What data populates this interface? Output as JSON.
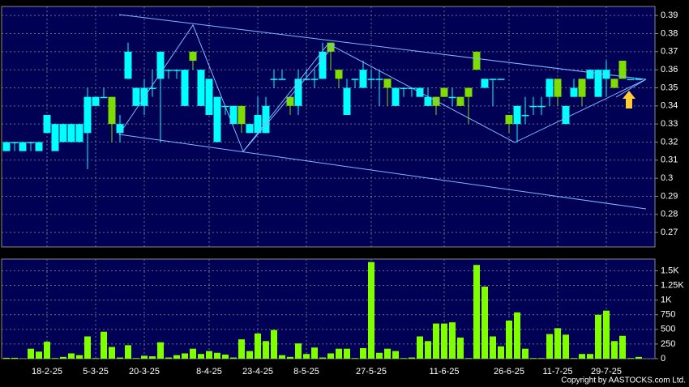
{
  "chart_data": [
    {
      "type": "candlestick",
      "open": [
        0.32,
        0.32,
        0.32,
        0.32,
        0.32,
        0.335,
        0.33,
        0.33,
        0.33,
        0.33,
        0.345,
        0.345,
        0.345,
        0.33,
        0.33,
        0.37,
        0.35,
        0.35,
        0.35,
        0.37,
        0.36,
        0.36,
        0.36,
        0.365,
        0.36,
        0.355,
        0.345,
        0.34,
        0.34,
        0.33,
        0.33,
        0.335,
        0.34,
        0.355,
        0.355,
        0.34,
        0.355,
        0.355,
        0.355,
        0.37,
        0.37,
        0.355,
        0.35,
        0.355,
        0.36,
        0.355,
        0.355,
        0.35,
        0.35,
        0.35,
        0.35,
        0.35,
        0.345,
        0.34,
        0.345,
        0.345,
        0.34,
        0.345,
        0.36,
        0.355,
        0.355,
        0.355,
        0.33,
        0.34,
        0.335,
        0.34,
        0.34,
        0.355,
        0.345,
        0.34,
        0.35,
        0.345,
        0.36,
        0.36,
        0.36,
        0.35,
        0.355,
        0.355,
        0.355
      ],
      "high": [
        0.32,
        0.32,
        0.32,
        0.32,
        0.32,
        0.335,
        0.33,
        0.33,
        0.33,
        0.33,
        0.35,
        0.345,
        0.35,
        0.345,
        0.335,
        0.375,
        0.35,
        0.355,
        0.36,
        0.37,
        0.36,
        0.36,
        0.36,
        0.37,
        0.36,
        0.355,
        0.345,
        0.34,
        0.34,
        0.34,
        0.33,
        0.345,
        0.345,
        0.36,
        0.36,
        0.345,
        0.36,
        0.36,
        0.36,
        0.375,
        0.375,
        0.36,
        0.355,
        0.355,
        0.365,
        0.36,
        0.36,
        0.355,
        0.35,
        0.35,
        0.35,
        0.35,
        0.35,
        0.345,
        0.35,
        0.35,
        0.345,
        0.35,
        0.37,
        0.355,
        0.355,
        0.355,
        0.335,
        0.34,
        0.345,
        0.345,
        0.345,
        0.355,
        0.355,
        0.34,
        0.355,
        0.355,
        0.36,
        0.36,
        0.365,
        0.355,
        0.365,
        0.355,
        0.355
      ],
      "low": [
        0.315,
        0.315,
        0.315,
        0.315,
        0.315,
        0.325,
        0.315,
        0.32,
        0.32,
        0.32,
        0.305,
        0.34,
        0.345,
        0.32,
        0.32,
        0.355,
        0.34,
        0.335,
        0.345,
        0.32,
        0.355,
        0.355,
        0.34,
        0.36,
        0.34,
        0.335,
        0.32,
        0.335,
        0.33,
        0.325,
        0.325,
        0.325,
        0.325,
        0.35,
        0.355,
        0.335,
        0.335,
        0.355,
        0.35,
        0.355,
        0.36,
        0.35,
        0.335,
        0.35,
        0.35,
        0.35,
        0.34,
        0.34,
        0.34,
        0.345,
        0.345,
        0.345,
        0.34,
        0.335,
        0.345,
        0.34,
        0.34,
        0.33,
        0.36,
        0.35,
        0.34,
        0.355,
        0.325,
        0.32,
        0.33,
        0.335,
        0.335,
        0.34,
        0.34,
        0.33,
        0.345,
        0.34,
        0.355,
        0.345,
        0.345,
        0.35,
        0.355,
        0.355,
        0.355
      ],
      "close": [
        0.315,
        0.32,
        0.315,
        0.32,
        0.315,
        0.325,
        0.315,
        0.32,
        0.32,
        0.32,
        0.325,
        0.34,
        0.345,
        0.345,
        0.325,
        0.355,
        0.34,
        0.34,
        0.35,
        0.355,
        0.36,
        0.36,
        0.34,
        0.37,
        0.34,
        0.335,
        0.32,
        0.34,
        0.33,
        0.34,
        0.325,
        0.325,
        0.325,
        0.355,
        0.355,
        0.345,
        0.34,
        0.355,
        0.355,
        0.355,
        0.375,
        0.36,
        0.335,
        0.355,
        0.35,
        0.355,
        0.355,
        0.355,
        0.34,
        0.35,
        0.35,
        0.345,
        0.34,
        0.345,
        0.35,
        0.345,
        0.345,
        0.35,
        0.37,
        0.35,
        0.355,
        0.355,
        0.335,
        0.33,
        0.335,
        0.34,
        0.34,
        0.345,
        0.355,
        0.33,
        0.345,
        0.355,
        0.355,
        0.345,
        0.355,
        0.355,
        0.365,
        0.355,
        0.355
      ],
      "up_color": "#7fdc00",
      "down_color": "#00ffff",
      "ylim": [
        0.262,
        0.395
      ],
      "yticks": [
        0.27,
        0.28,
        0.29,
        0.3,
        0.31,
        0.32,
        0.33,
        0.34,
        0.35,
        0.36,
        0.37,
        0.38,
        0.39
      ],
      "grid": true
    },
    {
      "type": "bar",
      "categories": [
        null,
        null,
        null,
        null,
        null,
        "18-2-25",
        null,
        null,
        null,
        null,
        null,
        "5-3-25",
        null,
        null,
        null,
        null,
        null,
        "20-3-25",
        null,
        null,
        null,
        null,
        null,
        null,
        null,
        "8-4-25",
        null,
        null,
        null,
        null,
        null,
        "23-4-25",
        null,
        null,
        null,
        null,
        null,
        "8-5-25",
        null,
        null,
        null,
        null,
        null,
        null,
        null,
        "27-5-25",
        null,
        null,
        null,
        null,
        null,
        null,
        null,
        null,
        "11-6-25",
        null,
        null,
        null,
        null,
        null,
        null,
        null,
        "26-6-25",
        null,
        null,
        null,
        null,
        null,
        "11-7-25",
        null,
        null,
        null,
        null,
        null,
        "29-7-25",
        null,
        null,
        null,
        null
      ],
      "values": [
        15,
        15,
        5,
        170,
        120,
        290,
        10,
        30,
        90,
        60,
        380,
        10,
        460,
        200,
        20,
        230,
        10,
        50,
        40,
        280,
        20,
        60,
        90,
        170,
        80,
        130,
        100,
        70,
        20,
        330,
        130,
        430,
        300,
        490,
        60,
        30,
        260,
        80,
        190,
        20,
        90,
        170,
        170,
        10,
        180,
        1650,
        100,
        170,
        130,
        10,
        20,
        380,
        300,
        600,
        600,
        620,
        360,
        10,
        1600,
        1230,
        380,
        210,
        650,
        790,
        170,
        10,
        10,
        420,
        520,
        410,
        10,
        80,
        80,
        750,
        820,
        300,
        390,
        10,
        30
      ],
      "color": "#80ff00",
      "ylim": [
        0,
        1700
      ],
      "yticks": [
        0,
        250,
        500,
        750,
        {
          "value": 1000,
          "label": "1K"
        },
        {
          "value": 1250,
          "label": "1.25K"
        },
        {
          "value": 1500,
          "label": "1.5K"
        }
      ],
      "grid": true
    }
  ],
  "copyright": "Copyright by AASTOCKS.com Ltd."
}
